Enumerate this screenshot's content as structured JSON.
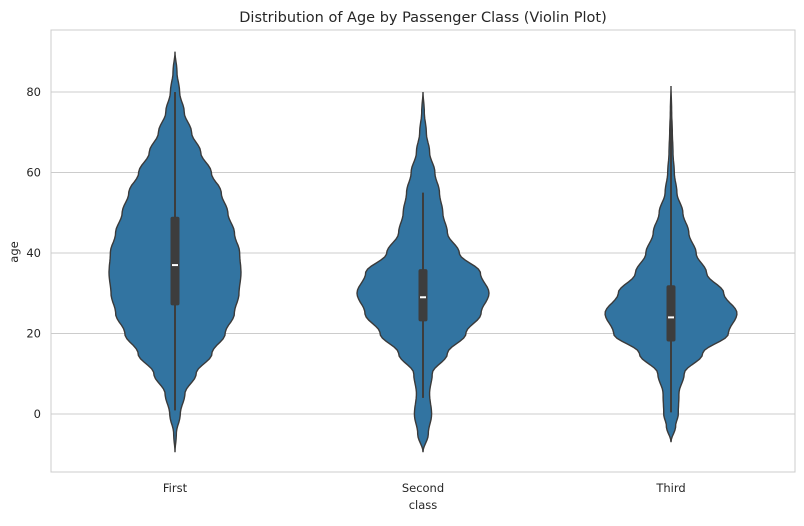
{
  "chart_data": {
    "type": "violin",
    "title": "Distribution of Age by Passenger Class (Violin Plot)",
    "xlabel": "class",
    "ylabel": "age",
    "ylim": [
      -14,
      94
    ],
    "yticks": [
      "0",
      "20",
      "40",
      "60",
      "80"
    ],
    "grid": "horizontal",
    "color": "#3274a1",
    "categories": [
      "First",
      "Second",
      "Third"
    ],
    "violins": [
      {
        "category": "First",
        "min": 0.9,
        "q1": 27,
        "median": 37,
        "q3": 49,
        "max": 80,
        "kde_range": [
          -9.5,
          90
        ],
        "density": [
          [
            -9.5,
            0.0
          ],
          [
            -5,
            0.02
          ],
          [
            0,
            0.08
          ],
          [
            5,
            0.15
          ],
          [
            10,
            0.32
          ],
          [
            15,
            0.56
          ],
          [
            20,
            0.76
          ],
          [
            25,
            0.9
          ],
          [
            30,
            0.97
          ],
          [
            35,
            1.0
          ],
          [
            40,
            0.98
          ],
          [
            45,
            0.9
          ],
          [
            50,
            0.8
          ],
          [
            55,
            0.7
          ],
          [
            60,
            0.55
          ],
          [
            65,
            0.39
          ],
          [
            70,
            0.25
          ],
          [
            75,
            0.14
          ],
          [
            80,
            0.07
          ],
          [
            85,
            0.03
          ],
          [
            90,
            0.0
          ]
        ]
      },
      {
        "category": "Second",
        "min": 4,
        "q1": 23,
        "median": 29,
        "q3": 36,
        "max": 55,
        "kde_range": [
          -9.5,
          80
        ],
        "density": [
          [
            -9.5,
            0.0
          ],
          [
            -5,
            0.08
          ],
          [
            0,
            0.13
          ],
          [
            5,
            0.1
          ],
          [
            10,
            0.14
          ],
          [
            15,
            0.37
          ],
          [
            20,
            0.65
          ],
          [
            25,
            0.88
          ],
          [
            30,
            1.0
          ],
          [
            35,
            0.87
          ],
          [
            40,
            0.55
          ],
          [
            45,
            0.37
          ],
          [
            50,
            0.3
          ],
          [
            55,
            0.25
          ],
          [
            60,
            0.18
          ],
          [
            65,
            0.1
          ],
          [
            70,
            0.05
          ],
          [
            75,
            0.02
          ],
          [
            80,
            0.0
          ]
        ]
      },
      {
        "category": "Third",
        "min": 0.4,
        "q1": 18,
        "median": 24,
        "q3": 32,
        "max": 74,
        "kde_range": [
          -7,
          81.5
        ],
        "density": [
          [
            -7,
            0.0
          ],
          [
            -3,
            0.07
          ],
          [
            0,
            0.11
          ],
          [
            5,
            0.12
          ],
          [
            10,
            0.2
          ],
          [
            15,
            0.48
          ],
          [
            20,
            0.87
          ],
          [
            25,
            1.0
          ],
          [
            30,
            0.8
          ],
          [
            35,
            0.54
          ],
          [
            40,
            0.38
          ],
          [
            45,
            0.27
          ],
          [
            50,
            0.18
          ],
          [
            55,
            0.09
          ],
          [
            60,
            0.05
          ],
          [
            65,
            0.03
          ],
          [
            70,
            0.02
          ],
          [
            75,
            0.01
          ],
          [
            81.5,
            0.0
          ]
        ]
      }
    ]
  }
}
